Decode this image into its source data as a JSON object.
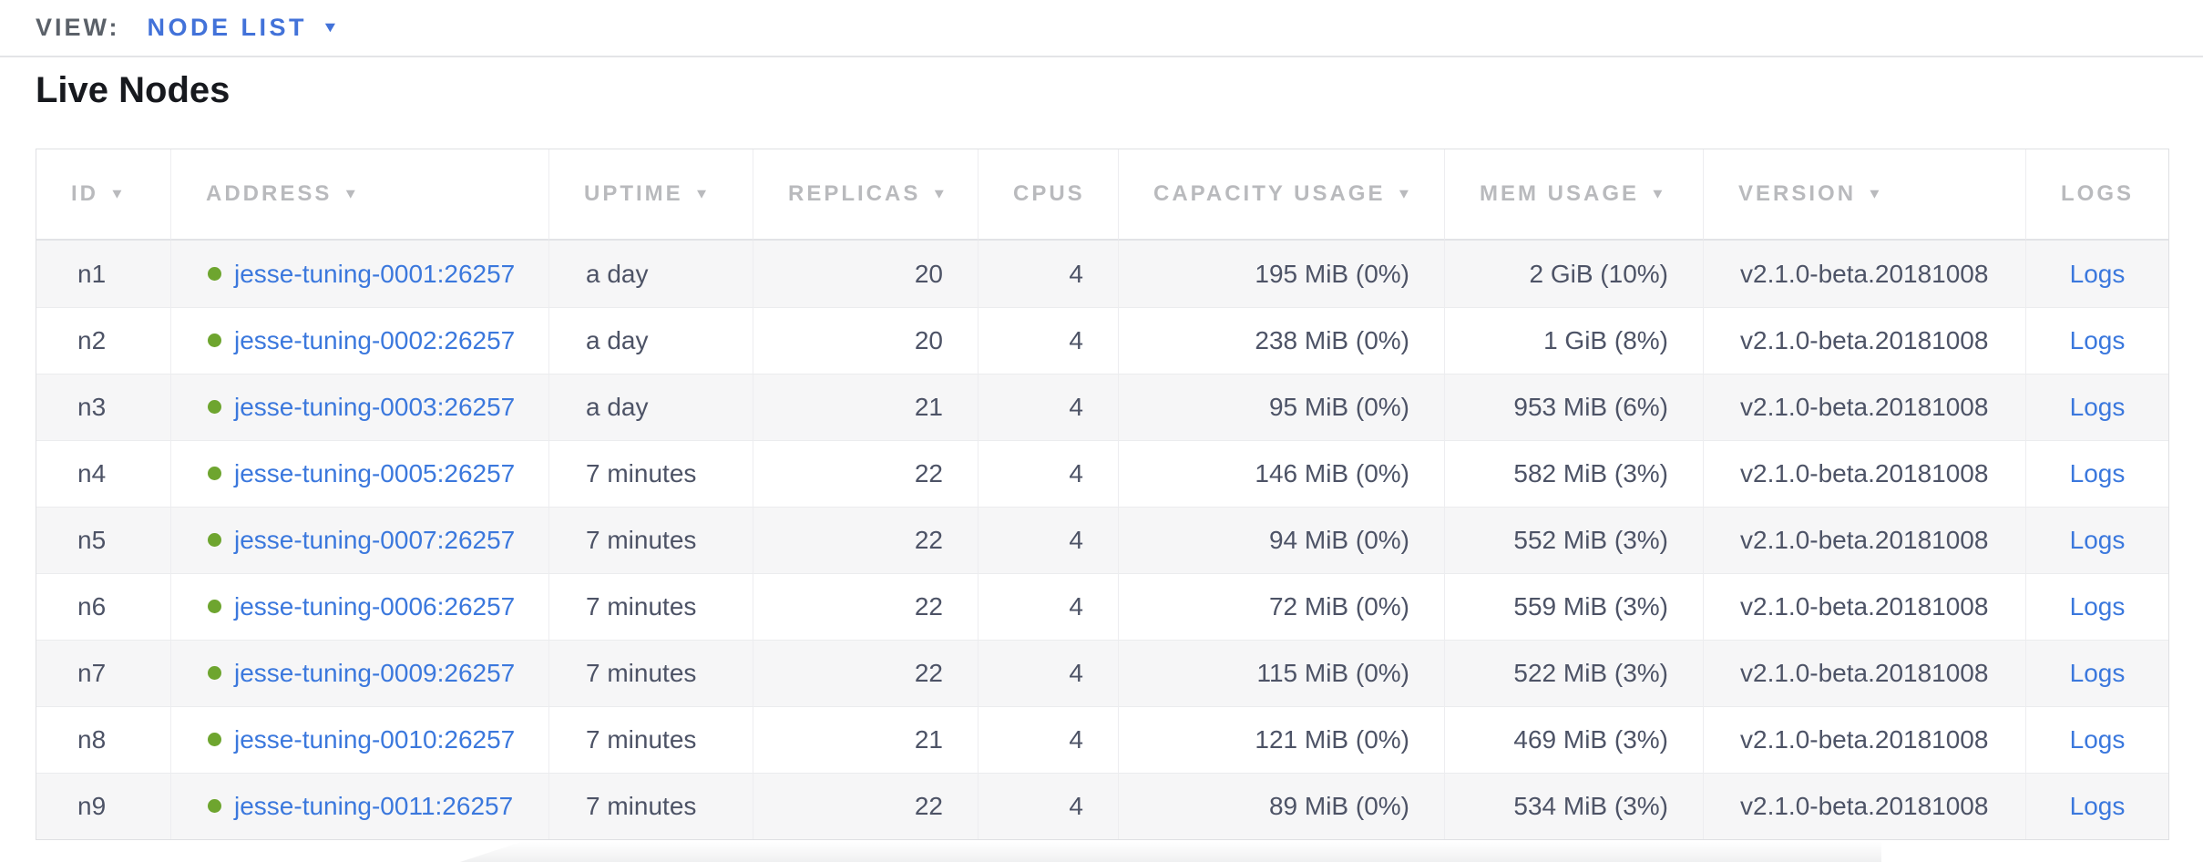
{
  "topbar": {
    "view_label": "VIEW:",
    "view_value": "NODE LIST"
  },
  "page": {
    "title": "Live Nodes"
  },
  "table": {
    "columns": [
      {
        "key": "id",
        "label": "ID",
        "sortable": true,
        "align": "left"
      },
      {
        "key": "address",
        "label": "ADDRESS",
        "sortable": true,
        "align": "left"
      },
      {
        "key": "uptime",
        "label": "UPTIME",
        "sortable": true,
        "align": "left"
      },
      {
        "key": "replicas",
        "label": "REPLICAS",
        "sortable": true,
        "align": "right"
      },
      {
        "key": "cpus",
        "label": "CPUS",
        "sortable": false,
        "align": "right"
      },
      {
        "key": "capacity",
        "label": "CAPACITY USAGE",
        "sortable": true,
        "align": "right"
      },
      {
        "key": "mem",
        "label": "MEM USAGE",
        "sortable": true,
        "align": "right"
      },
      {
        "key": "version",
        "label": "VERSION",
        "sortable": true,
        "align": "left"
      },
      {
        "key": "logs",
        "label": "LOGS",
        "sortable": false,
        "align": "center"
      }
    ],
    "rows": [
      {
        "id": "n1",
        "status": "healthy",
        "address": "jesse-tuning-0001:26257",
        "uptime": "a day",
        "replicas": "20",
        "cpus": "4",
        "capacity": "195 MiB (0%)",
        "mem": "2 GiB (10%)",
        "version": "v2.1.0-beta.20181008",
        "logs": "Logs"
      },
      {
        "id": "n2",
        "status": "healthy",
        "address": "jesse-tuning-0002:26257",
        "uptime": "a day",
        "replicas": "20",
        "cpus": "4",
        "capacity": "238 MiB (0%)",
        "mem": "1 GiB (8%)",
        "version": "v2.1.0-beta.20181008",
        "logs": "Logs"
      },
      {
        "id": "n3",
        "status": "healthy",
        "address": "jesse-tuning-0003:26257",
        "uptime": "a day",
        "replicas": "21",
        "cpus": "4",
        "capacity": "95 MiB (0%)",
        "mem": "953 MiB (6%)",
        "version": "v2.1.0-beta.20181008",
        "logs": "Logs"
      },
      {
        "id": "n4",
        "status": "healthy",
        "address": "jesse-tuning-0005:26257",
        "uptime": "7 minutes",
        "replicas": "22",
        "cpus": "4",
        "capacity": "146 MiB (0%)",
        "mem": "582 MiB (3%)",
        "version": "v2.1.0-beta.20181008",
        "logs": "Logs"
      },
      {
        "id": "n5",
        "status": "healthy",
        "address": "jesse-tuning-0007:26257",
        "uptime": "7 minutes",
        "replicas": "22",
        "cpus": "4",
        "capacity": "94 MiB (0%)",
        "mem": "552 MiB (3%)",
        "version": "v2.1.0-beta.20181008",
        "logs": "Logs"
      },
      {
        "id": "n6",
        "status": "healthy",
        "address": "jesse-tuning-0006:26257",
        "uptime": "7 minutes",
        "replicas": "22",
        "cpus": "4",
        "capacity": "72 MiB (0%)",
        "mem": "559 MiB (3%)",
        "version": "v2.1.0-beta.20181008",
        "logs": "Logs"
      },
      {
        "id": "n7",
        "status": "healthy",
        "address": "jesse-tuning-0009:26257",
        "uptime": "7 minutes",
        "replicas": "22",
        "cpus": "4",
        "capacity": "115 MiB (0%)",
        "mem": "522 MiB (3%)",
        "version": "v2.1.0-beta.20181008",
        "logs": "Logs"
      },
      {
        "id": "n8",
        "status": "healthy",
        "address": "jesse-tuning-0010:26257",
        "uptime": "7 minutes",
        "replicas": "21",
        "cpus": "4",
        "capacity": "121 MiB (0%)",
        "mem": "469 MiB (3%)",
        "version": "v2.1.0-beta.20181008",
        "logs": "Logs"
      },
      {
        "id": "n9",
        "status": "healthy",
        "address": "jesse-tuning-0011:26257",
        "uptime": "7 minutes",
        "replicas": "22",
        "cpus": "4",
        "capacity": "89 MiB (0%)",
        "mem": "534 MiB (3%)",
        "version": "v2.1.0-beta.20181008",
        "logs": "Logs"
      }
    ],
    "sort_caret_icon": "▼"
  },
  "icons": {
    "view_dropdown_caret": "▼"
  },
  "colors": {
    "accent_blue": "#4272d9",
    "link_blue": "#3b78dd",
    "healthy_green": "#6ea52f",
    "header_gray": "#b9babd",
    "cell_text": "#4d5366",
    "view_label_gray": "#5b6169",
    "row_alt_bg": "#f6f6f7"
  }
}
